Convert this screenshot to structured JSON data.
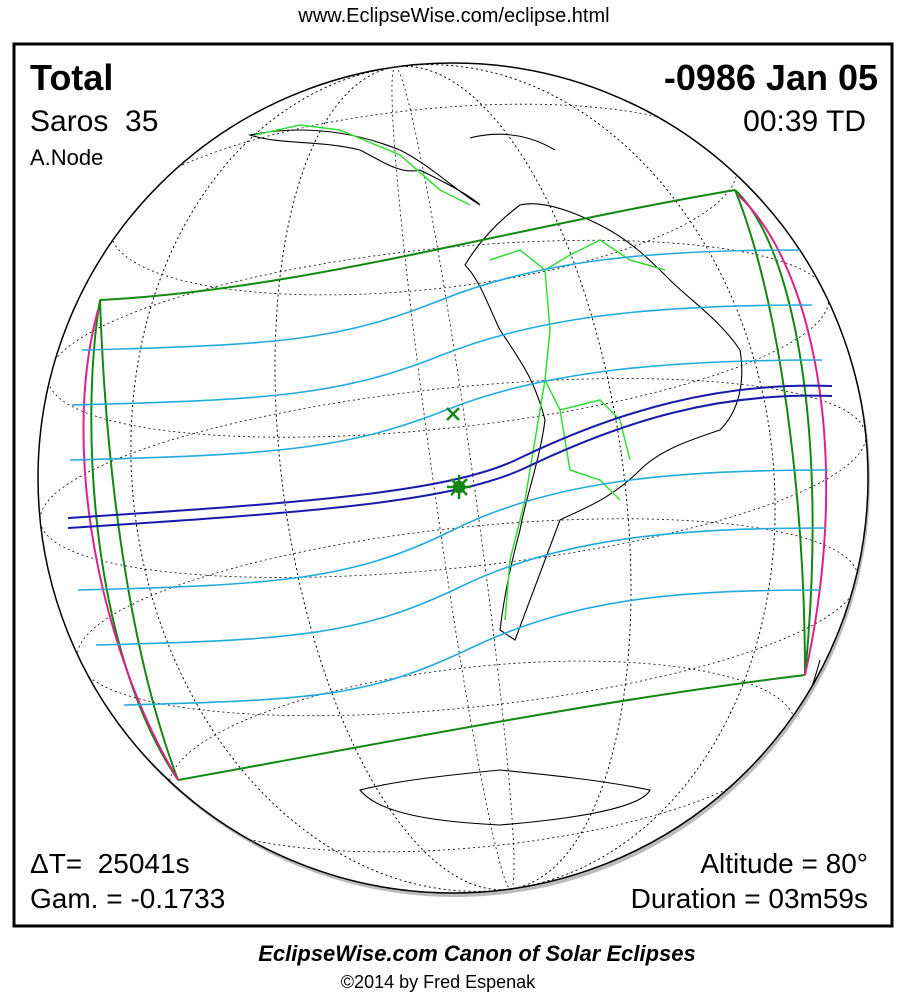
{
  "header": {
    "url": "www.EclipseWise.com/eclipse.html"
  },
  "panel": {
    "eclipse_type": "Total",
    "saros": "Saros  35",
    "node": "A.Node",
    "date": "-0986 Jan 05",
    "time": "00:39 TD",
    "delta_t": "ΔT=  25041s",
    "gamma": "Gam. = -0.1733",
    "altitude": "Altitude = 80°",
    "duration": "Duration = 03m59s"
  },
  "footer": {
    "title": "EclipseWise.com Canon of Solar Eclipses",
    "copyright": "©2014 by Fred Espenak"
  }
}
